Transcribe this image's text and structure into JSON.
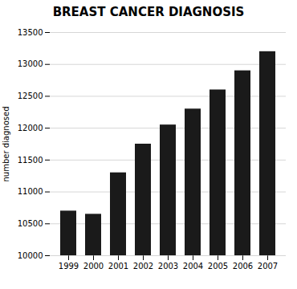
{
  "chart_data": {
    "type": "bar",
    "title": "BREAST CANCER DIAGNOSIS",
    "ylabel": "number diagnosed",
    "categories": [
      "1999",
      "2000",
      "2001",
      "2002",
      "2003",
      "2004",
      "2005",
      "2006",
      "2007"
    ],
    "values": [
      10700,
      10650,
      11300,
      11750,
      12050,
      12300,
      12600,
      12900,
      13200
    ],
    "color": "#1a1a1a",
    "ylim": [
      10000,
      13500
    ],
    "yticks": [
      10000,
      10500,
      11000,
      11500,
      12000,
      12500,
      13000,
      13500
    ],
    "grid": true
  }
}
